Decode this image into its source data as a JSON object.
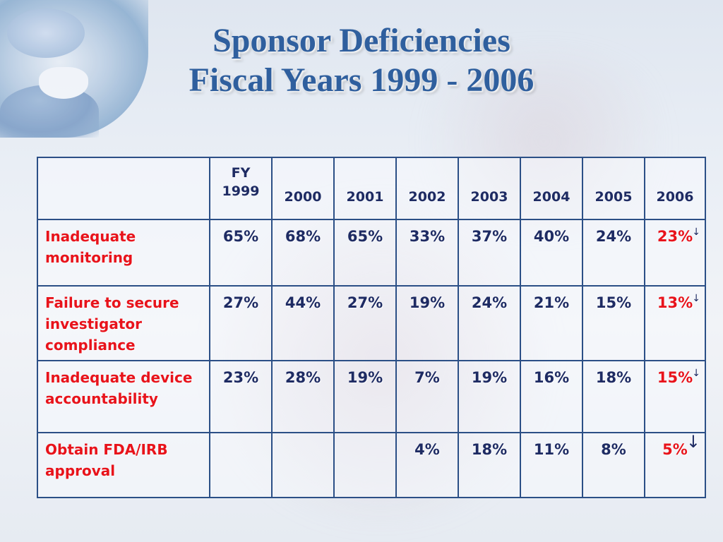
{
  "slide": {
    "title_line1": "Sponsor Deficiencies",
    "title_line2": "Fiscal Years 1999 - 2006"
  },
  "table": {
    "header": {
      "fy_label": "FY",
      "years": [
        "1999",
        "2000",
        "2001",
        "2002",
        "2003",
        "2004",
        "2005",
        "2006"
      ],
      "highlight_year": "2006"
    },
    "rows": [
      {
        "label": "Inadequate monitoring",
        "values": [
          "65%",
          "68%",
          "65%",
          "33%",
          "37%",
          "40%",
          "24%",
          "23%"
        ]
      },
      {
        "label": "Failure to secure investigator compliance",
        "values": [
          "27%",
          "44%",
          "27%",
          "19%",
          "24%",
          "21%",
          "15%",
          "13%"
        ]
      },
      {
        "label": "Inadequate device accountability",
        "values": [
          "23%",
          "28%",
          "19%",
          "7%",
          "19%",
          "16%",
          "18%",
          "15%"
        ]
      },
      {
        "label": "Obtain FDA/IRB approval",
        "values": [
          "",
          "",
          "",
          "4%",
          "18%",
          "11%",
          "8%",
          "5%"
        ]
      }
    ],
    "trend_icon": "down-arrow-icon"
  },
  "colors": {
    "title": "#2f5f9e",
    "highlight": "#e8131b",
    "body_text": "#1e2b63",
    "border": "#2b4f86"
  }
}
